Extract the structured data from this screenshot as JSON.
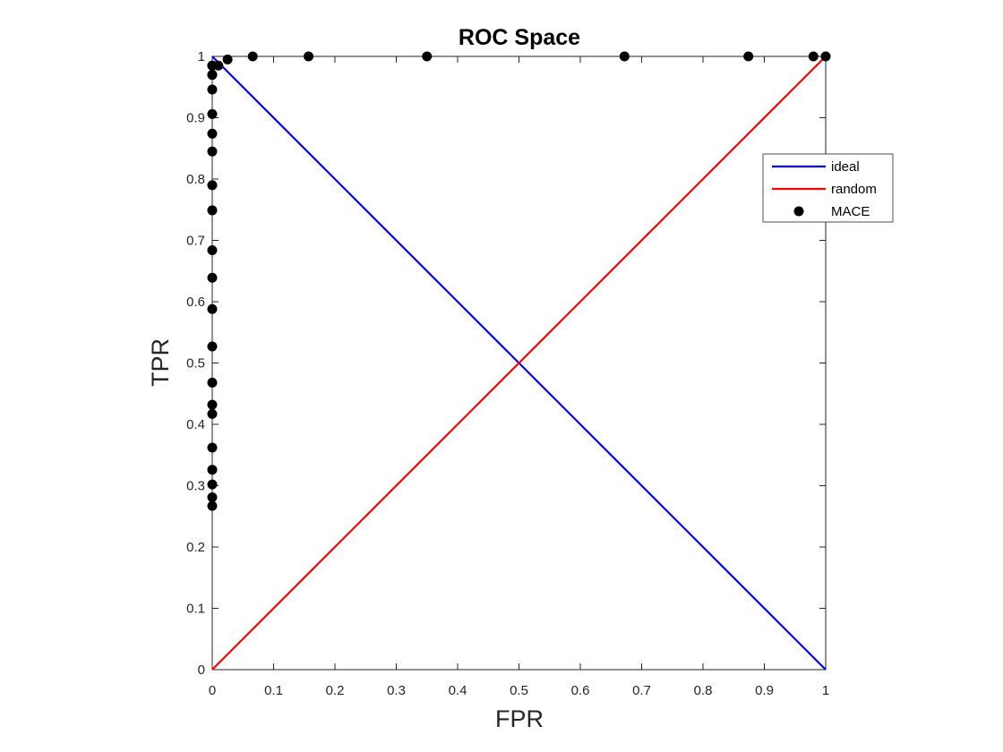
{
  "chart_data": {
    "type": "line",
    "title": "ROC Space",
    "xlabel": "FPR",
    "ylabel": "TPR",
    "xlim": [
      0,
      1
    ],
    "ylim": [
      0,
      1
    ],
    "x_ticks": [
      "0",
      "0.1",
      "0.2",
      "0.3",
      "0.4",
      "0.5",
      "0.6",
      "0.7",
      "0.8",
      "0.9",
      "1"
    ],
    "y_ticks": [
      "0",
      "0.1",
      "0.2",
      "0.3",
      "0.4",
      "0.5",
      "0.6",
      "0.7",
      "0.8",
      "0.9",
      "1"
    ],
    "grid": false,
    "legend_position": "top-right",
    "series": [
      {
        "name": "ideal",
        "type": "line",
        "color": "#0000ff",
        "x": [
          0,
          1
        ],
        "y": [
          1,
          0
        ]
      },
      {
        "name": "random",
        "type": "line",
        "color": "#ff0000",
        "x": [
          0,
          1
        ],
        "y": [
          0,
          1
        ]
      },
      {
        "name": "MACE",
        "type": "scatter",
        "color": "#000000",
        "x": [
          0,
          0,
          0,
          0,
          0,
          0,
          0,
          0,
          0,
          0,
          0,
          0,
          0,
          0,
          0,
          0,
          0,
          0,
          0,
          0,
          0,
          0,
          0.01,
          0.025,
          0.066,
          0.157,
          0.35,
          0.672,
          0.874,
          0.98,
          1.0
        ],
        "y": [
          0.267,
          0.281,
          0.302,
          0.326,
          0.362,
          0.417,
          0.432,
          0.468,
          0.527,
          0.588,
          0.639,
          0.684,
          0.749,
          0.79,
          0.845,
          0.874,
          0.906,
          0.946,
          0.97,
          0.97,
          0.985,
          0.985,
          0.985,
          0.995,
          1.0,
          1.0,
          1.0,
          1.0,
          1.0,
          1.0,
          1.0
        ]
      }
    ]
  }
}
